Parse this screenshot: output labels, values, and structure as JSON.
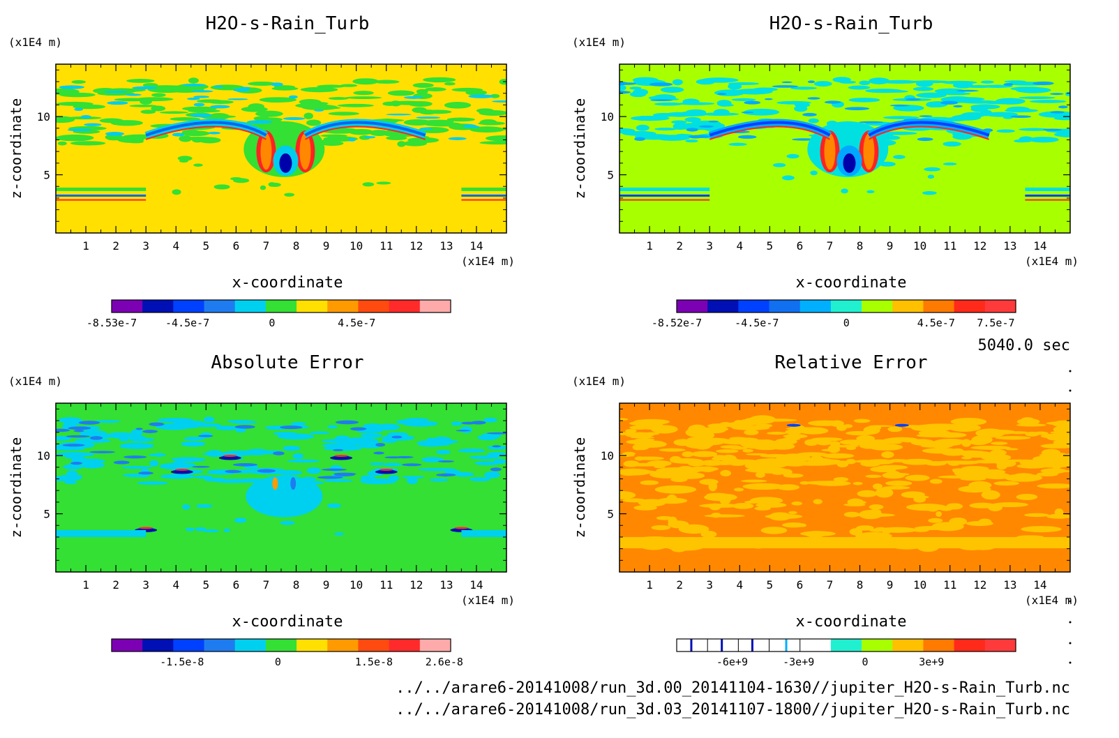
{
  "time_label": "5040.0 sec",
  "file_paths": [
    "../../arare6-20141008/run_3d.00_20141104-1630//jupiter_H2O-s-Rain_Turb.nc",
    "../../arare6-20141008/run_3d.03_20141107-1800//jupiter_H2O-s-Rain_Turb.nc"
  ],
  "chart_data": [
    {
      "type": "heatmap",
      "title": "H2O-s-Rain_Turb",
      "xlabel": "x-coordinate",
      "ylabel": "z-coordinate",
      "x_unit": "(x1E4 m)",
      "y_unit": "(x1E4 m)",
      "xlim": [
        0,
        15
      ],
      "ylim": [
        0,
        14.5
      ],
      "x_ticks": [
        "1",
        "2",
        "3",
        "4",
        "5",
        "6",
        "7",
        "8",
        "9",
        "10",
        "11",
        "12",
        "13",
        "14"
      ],
      "y_ticks": [
        "5",
        "10"
      ],
      "background_color": "#ffe000",
      "structure_colors": [
        "#33e033",
        "#00ccee",
        "#0066ee",
        "#0000aa",
        "#ff8800",
        "#ff2222"
      ],
      "colorbar": {
        "colors": [
          "#7c00b4",
          "#0010b4",
          "#0040ff",
          "#1e7cf0",
          "#00d0f0",
          "#33e033",
          "#ffe000",
          "#ff9a00",
          "#ff4a10",
          "#ff2a2a",
          "#ffaaaa"
        ],
        "tick_labels": [
          "-8.53e-7",
          "-4.5e-7",
          "0",
          "4.5e-7"
        ],
        "range": [
          -8.53e-07,
          9.5e-07
        ]
      }
    },
    {
      "type": "heatmap",
      "title": "H2O-s-Rain_Turb",
      "xlabel": "x-coordinate",
      "ylabel": "z-coordinate",
      "x_unit": "(x1E4 m)",
      "y_unit": "(x1E4 m)",
      "xlim": [
        0,
        15
      ],
      "ylim": [
        0,
        14.5
      ],
      "x_ticks": [
        "1",
        "2",
        "3",
        "4",
        "5",
        "6",
        "7",
        "8",
        "9",
        "10",
        "11",
        "12",
        "13",
        "14"
      ],
      "y_ticks": [
        "5",
        "10"
      ],
      "background_color": "#a8ff00",
      "structure_colors": [
        "#00e0e0",
        "#00a8ff",
        "#0040ff",
        "#0000aa",
        "#ff8800",
        "#ff2222"
      ],
      "colorbar": {
        "colors": [
          "#7c00b4",
          "#0010b4",
          "#0040ff",
          "#1070f0",
          "#00b0ff",
          "#20f0d0",
          "#a8ff00",
          "#ffc000",
          "#ff7a00",
          "#ff2a1a",
          "#ff3a3a"
        ],
        "tick_labels": [
          "-8.52e-7",
          "-4.5e-7",
          "0",
          "4.5e-7",
          "7.5e-7"
        ],
        "range": [
          -8.52e-07,
          8.5e-07
        ]
      }
    },
    {
      "type": "heatmap",
      "title": "Absolute Error",
      "xlabel": "x-coordinate",
      "ylabel": "z-coordinate",
      "x_unit": "(x1E4 m)",
      "y_unit": "(x1E4 m)",
      "xlim": [
        0,
        15
      ],
      "ylim": [
        0,
        14.5
      ],
      "x_ticks": [
        "1",
        "2",
        "3",
        "4",
        "5",
        "6",
        "7",
        "8",
        "9",
        "10",
        "11",
        "12",
        "13",
        "14"
      ],
      "y_ticks": [
        "5",
        "10"
      ],
      "background_color": "#33e033",
      "structure_colors": [
        "#00d0f0",
        "#1e7cf0",
        "#0010b4",
        "#ff9a00",
        "#ff2a2a"
      ],
      "colorbar": {
        "colors": [
          "#7c00b4",
          "#0010b4",
          "#0040ff",
          "#1e7cf0",
          "#00d0f0",
          "#33e033",
          "#ffe000",
          "#ff9a00",
          "#ff4a10",
          "#ff2a2a",
          "#ffaaaa"
        ],
        "tick_labels": [
          "-1.5e-8",
          "0",
          "1.5e-8",
          "2.6e-8"
        ],
        "range": [
          -2.6e-08,
          2.7e-08
        ]
      }
    },
    {
      "type": "heatmap",
      "title": "Relative Error",
      "xlabel": "x-coordinate",
      "ylabel": "z-coordinate",
      "x_unit": "(x1E4 m)",
      "y_unit": "(x1E4 m)",
      "xlim": [
        0,
        15
      ],
      "ylim": [
        0,
        14.5
      ],
      "x_ticks": [
        "1",
        "2",
        "3",
        "4",
        "5",
        "6",
        "7",
        "8",
        "9",
        "10",
        "11",
        "12",
        "13",
        "14"
      ],
      "y_ticks": [
        "5",
        "10"
      ],
      "background_color": "#ff8800",
      "structure_colors": [
        "#ffc400",
        "#ffc400",
        "#ffc400",
        "#0040ff",
        "#ff2222"
      ],
      "colorbar": {
        "colors": [
          "#ffffff",
          "#ffffff",
          "#ffffff",
          "#ffffff",
          "#ffffff",
          "#20f0d0",
          "#a8ff00",
          "#ffc000",
          "#ff7a00",
          "#ff2a1a",
          "#ff3a3a"
        ],
        "tick_labels": [
          "-6e+9",
          "-3e+9",
          "0",
          "3e+9"
        ],
        "range": [
          -8500000000.0,
          6800000000.0
        ]
      }
    }
  ]
}
